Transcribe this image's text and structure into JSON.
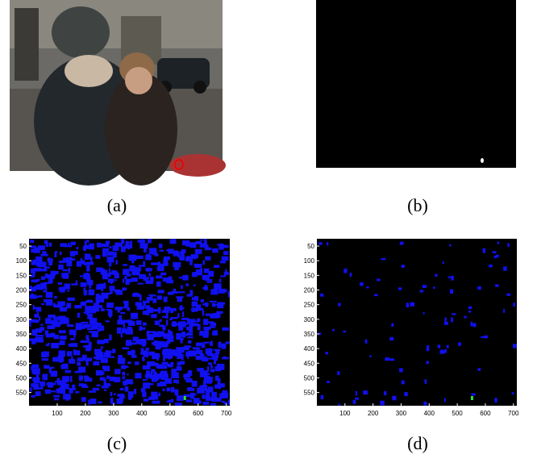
{
  "panels": [
    {
      "caption": "(a)"
    },
    {
      "caption": "(b)"
    },
    {
      "caption": "(c)",
      "xticks": [
        100,
        200,
        300,
        400,
        500,
        600,
        700
      ],
      "yticks": [
        50,
        100,
        150,
        200,
        250,
        300,
        350,
        400,
        450,
        500,
        550
      ]
    },
    {
      "caption": "(d)",
      "xticks": [
        100,
        200,
        300,
        400,
        500,
        600,
        700
      ],
      "yticks": [
        50,
        100,
        150,
        200,
        250,
        300,
        350,
        400,
        450,
        500,
        550
      ]
    }
  ]
}
